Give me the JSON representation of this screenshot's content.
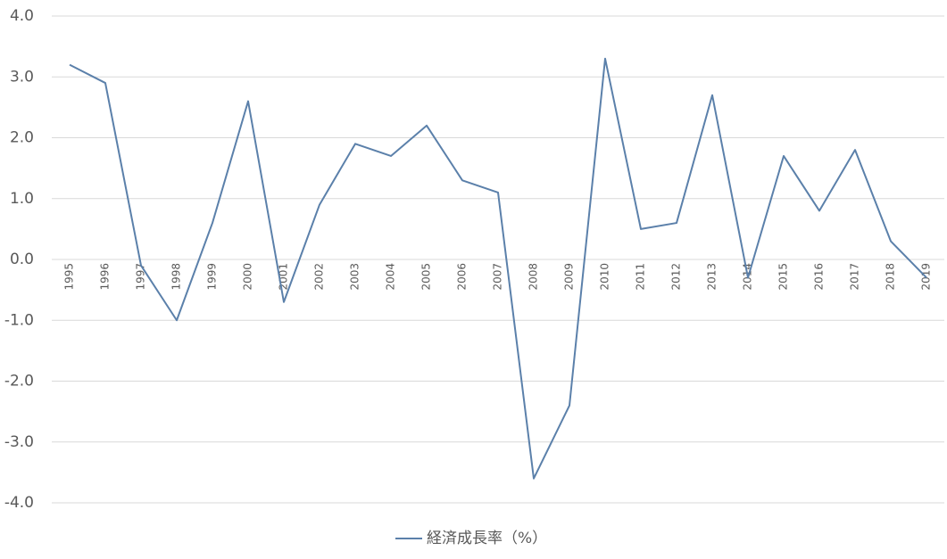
{
  "chart_data": {
    "type": "line",
    "categories": [
      "1995",
      "1996",
      "1997",
      "1998",
      "1999",
      "2000",
      "2001",
      "2002",
      "2003",
      "2004",
      "2005",
      "2006",
      "2007",
      "2008",
      "2009",
      "2010",
      "2011",
      "2012",
      "2013",
      "2014",
      "2015",
      "2016",
      "2017",
      "2018",
      "2019"
    ],
    "series": [
      {
        "name": "経済成長率（%）",
        "color": "#5b80aa",
        "values": [
          3.2,
          2.9,
          -0.1,
          -1.0,
          0.6,
          2.6,
          -0.7,
          0.9,
          1.9,
          1.7,
          2.2,
          1.3,
          1.1,
          -3.6,
          -2.4,
          3.3,
          0.5,
          0.6,
          2.7,
          -0.3,
          1.7,
          0.8,
          1.8,
          0.3,
          -0.3
        ]
      }
    ],
    "ylim": [
      -4,
      4
    ],
    "yticks": [
      {
        "value": -4,
        "label": "-4.0"
      },
      {
        "value": -3,
        "label": "-3.0"
      },
      {
        "value": -2,
        "label": "-2.0"
      },
      {
        "value": -1,
        "label": "-1.0"
      },
      {
        "value": 0,
        "label": "0.0"
      },
      {
        "value": 1,
        "label": "1.0"
      },
      {
        "value": 2,
        "label": "2.0"
      },
      {
        "value": 3,
        "label": "3.0"
      },
      {
        "value": 4,
        "label": "4.0"
      }
    ],
    "grid": true,
    "legend": "bottom"
  }
}
